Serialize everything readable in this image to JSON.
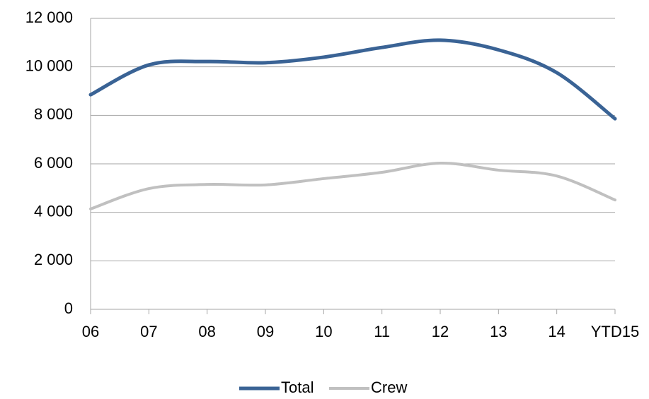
{
  "chart_data": {
    "type": "line",
    "categories": [
      "06",
      "07",
      "08",
      "09",
      "10",
      "11",
      "12",
      "13",
      "14",
      "YTD15"
    ],
    "series": [
      {
        "name": "Total",
        "color": "#3a6395",
        "values": [
          8850,
          10080,
          10220,
          10170,
          10400,
          10800,
          11100,
          10700,
          9760,
          7860
        ]
      },
      {
        "name": "Crew",
        "color": "#c0c0c0",
        "values": [
          4140,
          4980,
          5150,
          5130,
          5390,
          5650,
          6030,
          5740,
          5500,
          4510
        ]
      }
    ],
    "ylim": [
      0,
      12000
    ],
    "yticks": [
      0,
      {
        "value": 2000,
        "label": "2 000"
      },
      {
        "value": 4000,
        "label": "4 000"
      },
      {
        "value": 6000,
        "label": "6 000"
      },
      {
        "value": 8000,
        "label": "8 000"
      },
      {
        "value": 10000,
        "label": "10 000"
      },
      {
        "value": 12000,
        "label": "12 000"
      }
    ],
    "grid": true,
    "legend": "bottom"
  }
}
